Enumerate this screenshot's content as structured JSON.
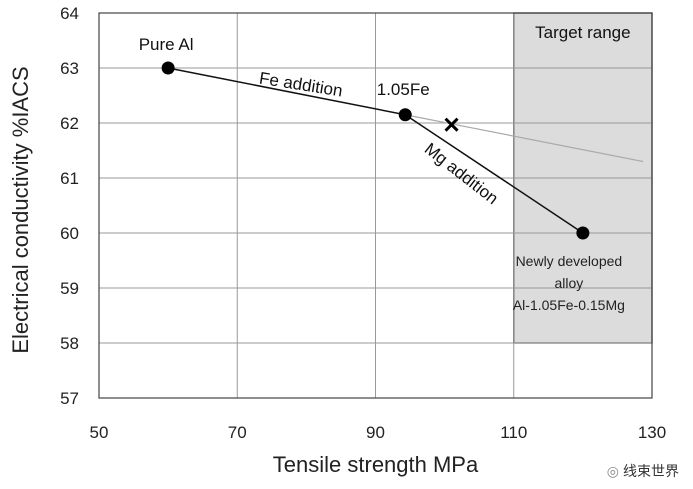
{
  "chart_data": {
    "type": "line",
    "xlabel": "Tensile strength MPa",
    "ylabel": "Electrical conductivity %IACS",
    "xlim": [
      50,
      130
    ],
    "ylim": [
      57,
      64
    ],
    "xticks": [
      50,
      70,
      90,
      110,
      130
    ],
    "yticks": [
      57,
      58,
      59,
      60,
      61,
      62,
      63,
      64
    ],
    "grid": true,
    "target_range": {
      "label": "Target range",
      "x": [
        110,
        130
      ],
      "y": [
        58,
        64
      ],
      "color": "#dcdcdc"
    },
    "points": [
      {
        "name": "Pure Al",
        "label": "Pure Al",
        "x": 60,
        "y": 63
      },
      {
        "name": "1.05Fe",
        "label": "1.05Fe",
        "x": 94.3,
        "y": 62.15
      },
      {
        "name": "Newly developed alloy",
        "label_lines": [
          "Newly developed",
          "alloy",
          "Al-1.05Fe-0.15Mg"
        ],
        "x": 120,
        "y": 60
      }
    ],
    "cross_marker": {
      "x": 101,
      "y": 61.97
    },
    "extrapolation": {
      "from": [
        94.3,
        62.15
      ],
      "to": [
        128.7,
        61.3
      ],
      "color": "#aaaaaa"
    },
    "annotations": [
      "Fe addition",
      "Mg addition"
    ]
  },
  "watermark": "线束世界"
}
